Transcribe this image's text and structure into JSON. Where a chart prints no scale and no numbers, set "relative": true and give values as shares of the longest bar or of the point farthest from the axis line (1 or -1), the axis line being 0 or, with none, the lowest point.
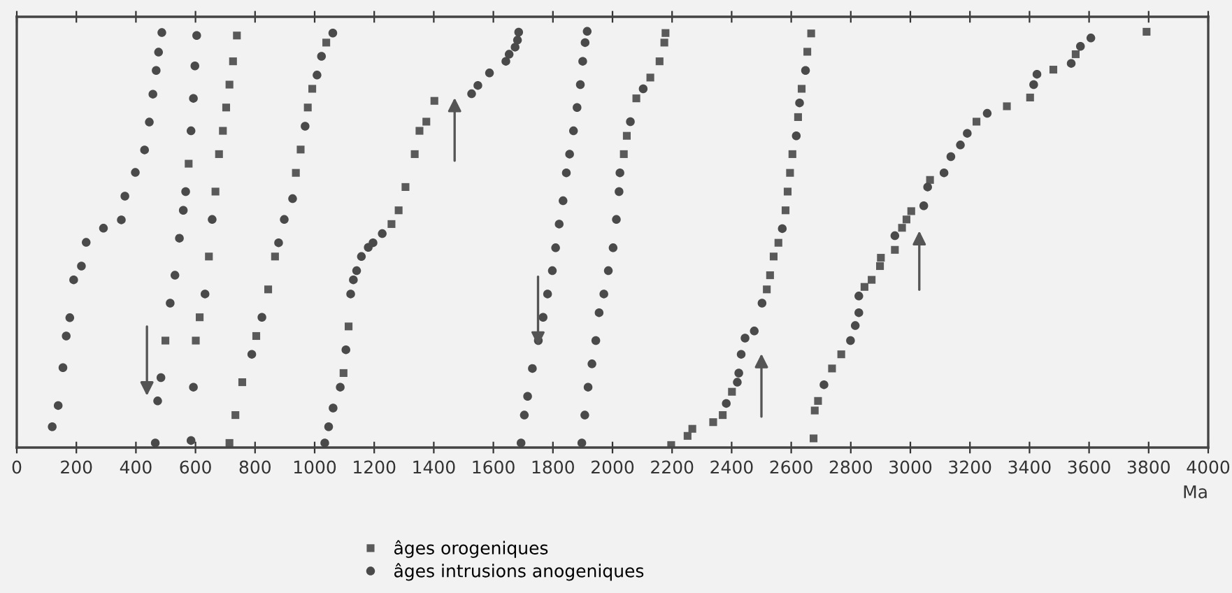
{
  "chart_data": {
    "type": "scatter",
    "relative": true,
    "xlabel": "Ma",
    "xlim": [
      0,
      4000
    ],
    "xticks": [
      0,
      200,
      400,
      600,
      800,
      1000,
      1200,
      1400,
      1600,
      1800,
      2000,
      2200,
      2400,
      2600,
      2800,
      3000,
      3200,
      3400,
      3600,
      3800,
      4000
    ],
    "grid": false,
    "legend": "bottom",
    "series": [
      {
        "name": "âges orogeniques",
        "color": "#5a5a5a",
        "marker": "square",
        "x": [
          499,
          577,
          601,
          614,
          645,
          667,
          679,
          692,
          703,
          714,
          726,
          739,
          714,
          734,
          757,
          804,
          844,
          867,
          937,
          953,
          977,
          992,
          1039,
          1097,
          1114,
          1258,
          1282,
          1305,
          1336,
          1352,
          1375,
          1402,
          2038,
          2048,
          2080,
          2127,
          2158,
          2174,
          2178,
          2197,
          2252,
          2268,
          2338,
          2370,
          2401,
          2518,
          2529,
          2541,
          2557,
          2581,
          2588,
          2596,
          2604,
          2623,
          2635,
          2654,
          2667,
          2675,
          2679,
          2690,
          2737,
          2768,
          2846,
          2870,
          2898,
          2901,
          2948,
          2972,
          2987,
          3003,
          3066,
          3222,
          3324,
          3402,
          3480,
          3555,
          3793
        ],
        "values": [
          0.257,
          0.682,
          0.257,
          0.313,
          0.459,
          0.615,
          0.705,
          0.761,
          0.817,
          0.872,
          0.928,
          0.99,
          0.011,
          0.078,
          0.157,
          0.268,
          0.38,
          0.459,
          0.66,
          0.716,
          0.817,
          0.862,
          0.973,
          0.179,
          0.291,
          0.537,
          0.57,
          0.626,
          0.705,
          0.761,
          0.783,
          0.833,
          0.705,
          0.749,
          0.839,
          0.889,
          0.928,
          0.973,
          0.996,
          0.006,
          0.028,
          0.045,
          0.061,
          0.078,
          0.134,
          0.38,
          0.414,
          0.459,
          0.492,
          0.57,
          0.615,
          0.66,
          0.705,
          0.794,
          0.862,
          0.951,
          0.995,
          0.022,
          0.089,
          0.112,
          0.19,
          0.224,
          0.386,
          0.403,
          0.436,
          0.456,
          0.475,
          0.528,
          0.548,
          0.568,
          0.643,
          0.783,
          0.82,
          0.841,
          0.908,
          0.945,
          0.999
        ]
      },
      {
        "name": "âges intrusions anogeniques",
        "color": "#4a4a4a",
        "marker": "circle",
        "x": [
          119,
          139,
          155,
          166,
          178,
          191,
          217,
          233,
          291,
          351,
          363,
          398,
          429,
          445,
          457,
          468,
          476,
          487,
          465,
          473,
          484,
          515,
          531,
          546,
          559,
          567,
          585,
          593,
          598,
          604,
          585,
          593,
          632,
          656,
          789,
          823,
          879,
          898,
          926,
          968,
          1008,
          1023,
          1061,
          1034,
          1047,
          1062,
          1086,
          1105,
          1121,
          1130,
          1141,
          1157,
          1180,
          1196,
          1227,
          1527,
          1548,
          1587,
          1642,
          1653,
          1673,
          1681,
          1685,
          1693,
          1704,
          1715,
          1731,
          1751,
          1767,
          1782,
          1798,
          1809,
          1821,
          1834,
          1845,
          1856,
          1869,
          1881,
          1892,
          1900,
          1908,
          1915,
          1897,
          1907,
          1918,
          1931,
          1944,
          1955,
          1971,
          1986,
          2002,
          2013,
          2022,
          2025,
          2060,
          2103,
          2382,
          2419,
          2424,
          2432,
          2445,
          2476,
          2502,
          2570,
          2617,
          2628,
          2648,
          2710,
          2799,
          2815,
          2827,
          2827,
          2948,
          3045,
          3058,
          3113,
          3136,
          3168,
          3191,
          3258,
          3414,
          3425,
          3540,
          3571,
          3606
        ],
        "values": [
          0.05,
          0.101,
          0.192,
          0.268,
          0.312,
          0.403,
          0.436,
          0.493,
          0.527,
          0.547,
          0.604,
          0.661,
          0.715,
          0.782,
          0.849,
          0.906,
          0.95,
          0.997,
          0.011,
          0.112,
          0.168,
          0.347,
          0.414,
          0.503,
          0.57,
          0.615,
          0.761,
          0.839,
          0.917,
          0.99,
          0.017,
          0.145,
          0.369,
          0.548,
          0.224,
          0.313,
          0.492,
          0.548,
          0.598,
          0.772,
          0.895,
          0.94,
          0.996,
          0.011,
          0.05,
          0.095,
          0.145,
          0.235,
          0.369,
          0.403,
          0.425,
          0.459,
          0.481,
          0.492,
          0.514,
          0.85,
          0.87,
          0.9,
          0.928,
          0.945,
          0.962,
          0.979,
          0.998,
          0.011,
          0.078,
          0.123,
          0.19,
          0.257,
          0.313,
          0.369,
          0.425,
          0.48,
          0.537,
          0.593,
          0.66,
          0.705,
          0.761,
          0.817,
          0.872,
          0.928,
          0.973,
          1,
          0.011,
          0.078,
          0.145,
          0.201,
          0.257,
          0.324,
          0.369,
          0.425,
          0.48,
          0.548,
          0.615,
          0.66,
          0.783,
          0.862,
          0.106,
          0.157,
          0.179,
          0.224,
          0.263,
          0.28,
          0.347,
          0.526,
          0.749,
          0.828,
          0.906,
          0.151,
          0.257,
          0.293,
          0.324,
          0.364,
          0.509,
          0.581,
          0.626,
          0.66,
          0.699,
          0.727,
          0.755,
          0.803,
          0.872,
          0.897,
          0.923,
          0.964,
          0.984
        ]
      }
    ]
  }
}
